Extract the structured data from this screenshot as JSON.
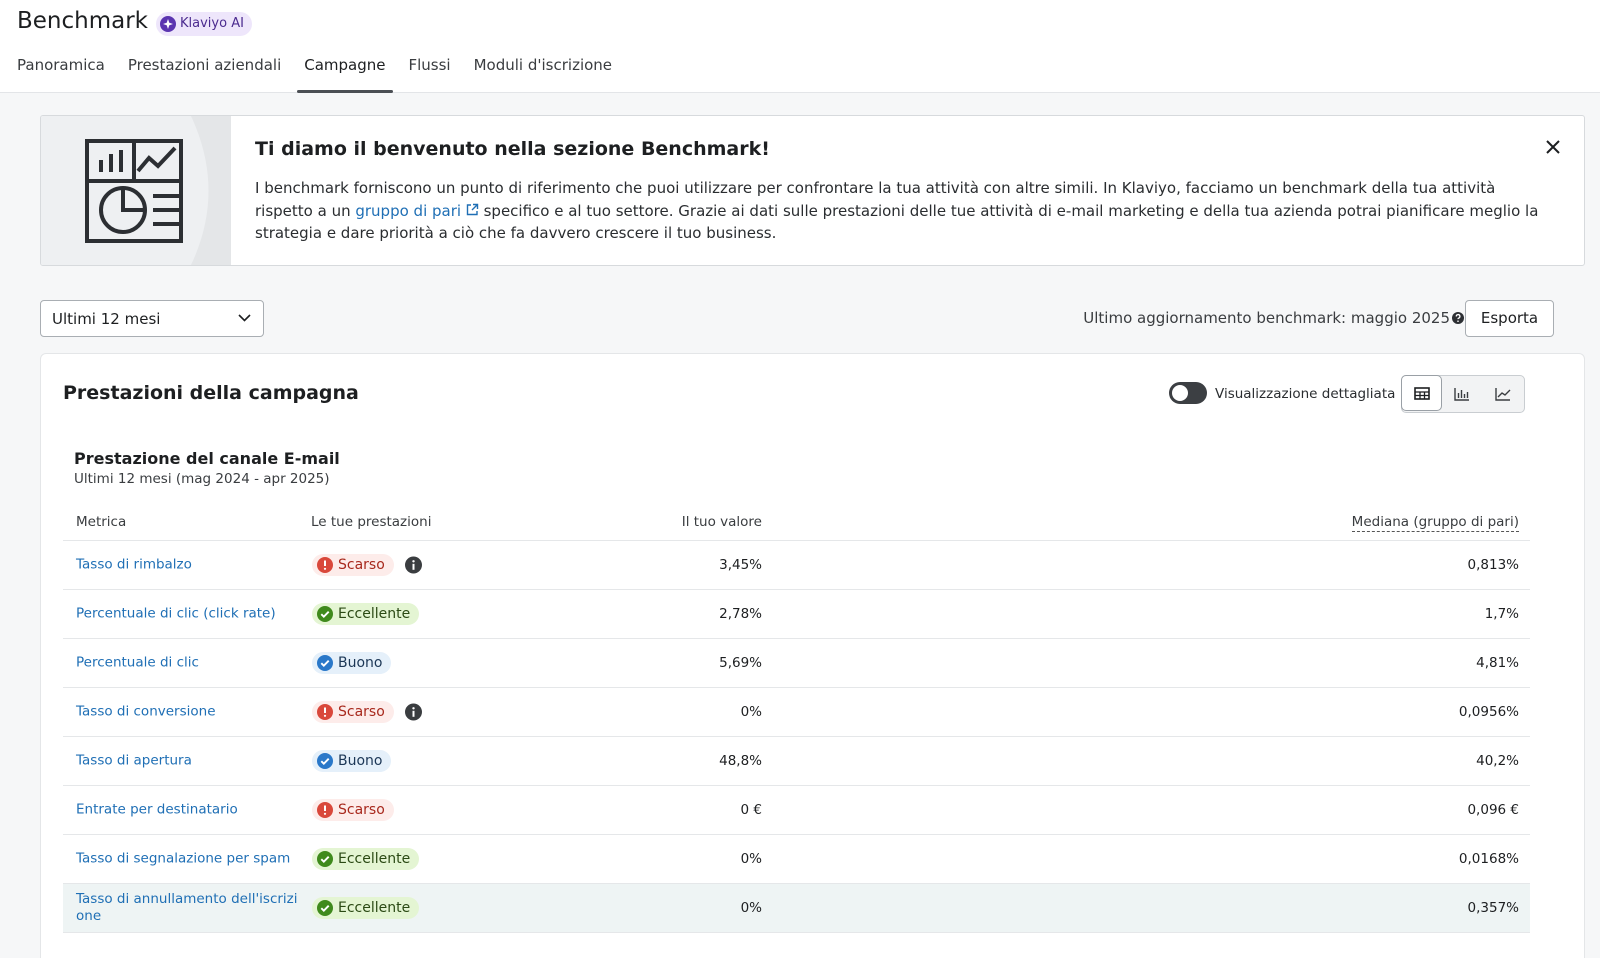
{
  "header": {
    "title": "Benchmark",
    "badge": "Klaviyo AI"
  },
  "tabs": [
    {
      "label": "Panoramica",
      "active": false
    },
    {
      "label": "Prestazioni aziendali",
      "active": false
    },
    {
      "label": "Campagne",
      "active": true
    },
    {
      "label": "Flussi",
      "active": false
    },
    {
      "label": "Moduli d'iscrizione",
      "active": false
    }
  ],
  "banner": {
    "title": "Ti diamo il benvenuto nella sezione Benchmark!",
    "text_before": "I benchmark forniscono un punto di riferimento che puoi utilizzare per confrontare la tua attività con altre simili. In Klaviyo, facciamo un benchmark della tua attività rispetto a un ",
    "link": "gruppo di pari",
    "text_after": " specifico e al tuo settore. Grazie ai dati sulle prestazioni delle tue attività di e-mail marketing e della tua azienda potrai pianificare meglio la strategia e dare priorità a ciò che fa davvero crescere il tuo business."
  },
  "controls": {
    "period": "Ultimi 12 mesi",
    "updated": "Ultimo aggiornamento benchmark: maggio 2025",
    "export": "Esporta"
  },
  "card": {
    "title": "Prestazioni della campagna",
    "toggle_label": "Visualizzazione dettagliata",
    "section_title": "Prestazione del canale E-mail",
    "section_subtitle": "Ultimi 12 mesi (mag 2024 - apr 2025)",
    "table": {
      "columns": [
        "Metrica",
        "Le tue prestazioni",
        "Il tuo valore",
        "Mediana (gruppo di pari)"
      ],
      "rows": [
        {
          "metric": "Tasso di rimbalzo",
          "status": "Scarso",
          "status_icon": "alert",
          "status_color": "#d9483b",
          "status_bg": "#fdecea",
          "status_text": "#a8291d",
          "info": true,
          "value": "3,45%",
          "median": "0,813%"
        },
        {
          "metric": "Percentuale di clic (click rate)",
          "status": "Eccellente",
          "status_icon": "check",
          "status_color": "#3f8a1c",
          "status_bg": "#e4f5d3",
          "status_text": "#2b4a14",
          "info": false,
          "value": "2,78%",
          "median": "1,7%"
        },
        {
          "metric": "Percentuale di clic",
          "status": "Buono",
          "status_icon": "check",
          "status_color": "#2a78c9",
          "status_bg": "#e5f0fa",
          "status_text": "#1c3756",
          "info": false,
          "value": "5,69%",
          "median": "4,81%"
        },
        {
          "metric": "Tasso di conversione",
          "status": "Scarso",
          "status_icon": "alert",
          "status_color": "#d9483b",
          "status_bg": "#fdecea",
          "status_text": "#a8291d",
          "info": true,
          "value": "0%",
          "median": "0,0956%"
        },
        {
          "metric": "Tasso di apertura",
          "status": "Buono",
          "status_icon": "check",
          "status_color": "#2a78c9",
          "status_bg": "#e5f0fa",
          "status_text": "#1c3756",
          "info": false,
          "value": "48,8%",
          "median": "40,2%"
        },
        {
          "metric": "Entrate per destinatario",
          "status": "Scarso",
          "status_icon": "alert",
          "status_color": "#d9483b",
          "status_bg": "#fdecea",
          "status_text": "#a8291d",
          "info": false,
          "value": "0 €",
          "median": "0,096 €"
        },
        {
          "metric": "Tasso di segnalazione per spam",
          "status": "Eccellente",
          "status_icon": "check",
          "status_color": "#3f8a1c",
          "status_bg": "#e4f5d3",
          "status_text": "#2b4a14",
          "info": false,
          "value": "0%",
          "median": "0,0168%"
        },
        {
          "metric": "Tasso di annullamento dell'iscrizione",
          "status": "Eccellente",
          "status_icon": "check",
          "status_color": "#3f8a1c",
          "status_bg": "#e4f5d3",
          "status_text": "#2b4a14",
          "info": false,
          "value": "0%",
          "median": "0,357%"
        }
      ]
    }
  }
}
